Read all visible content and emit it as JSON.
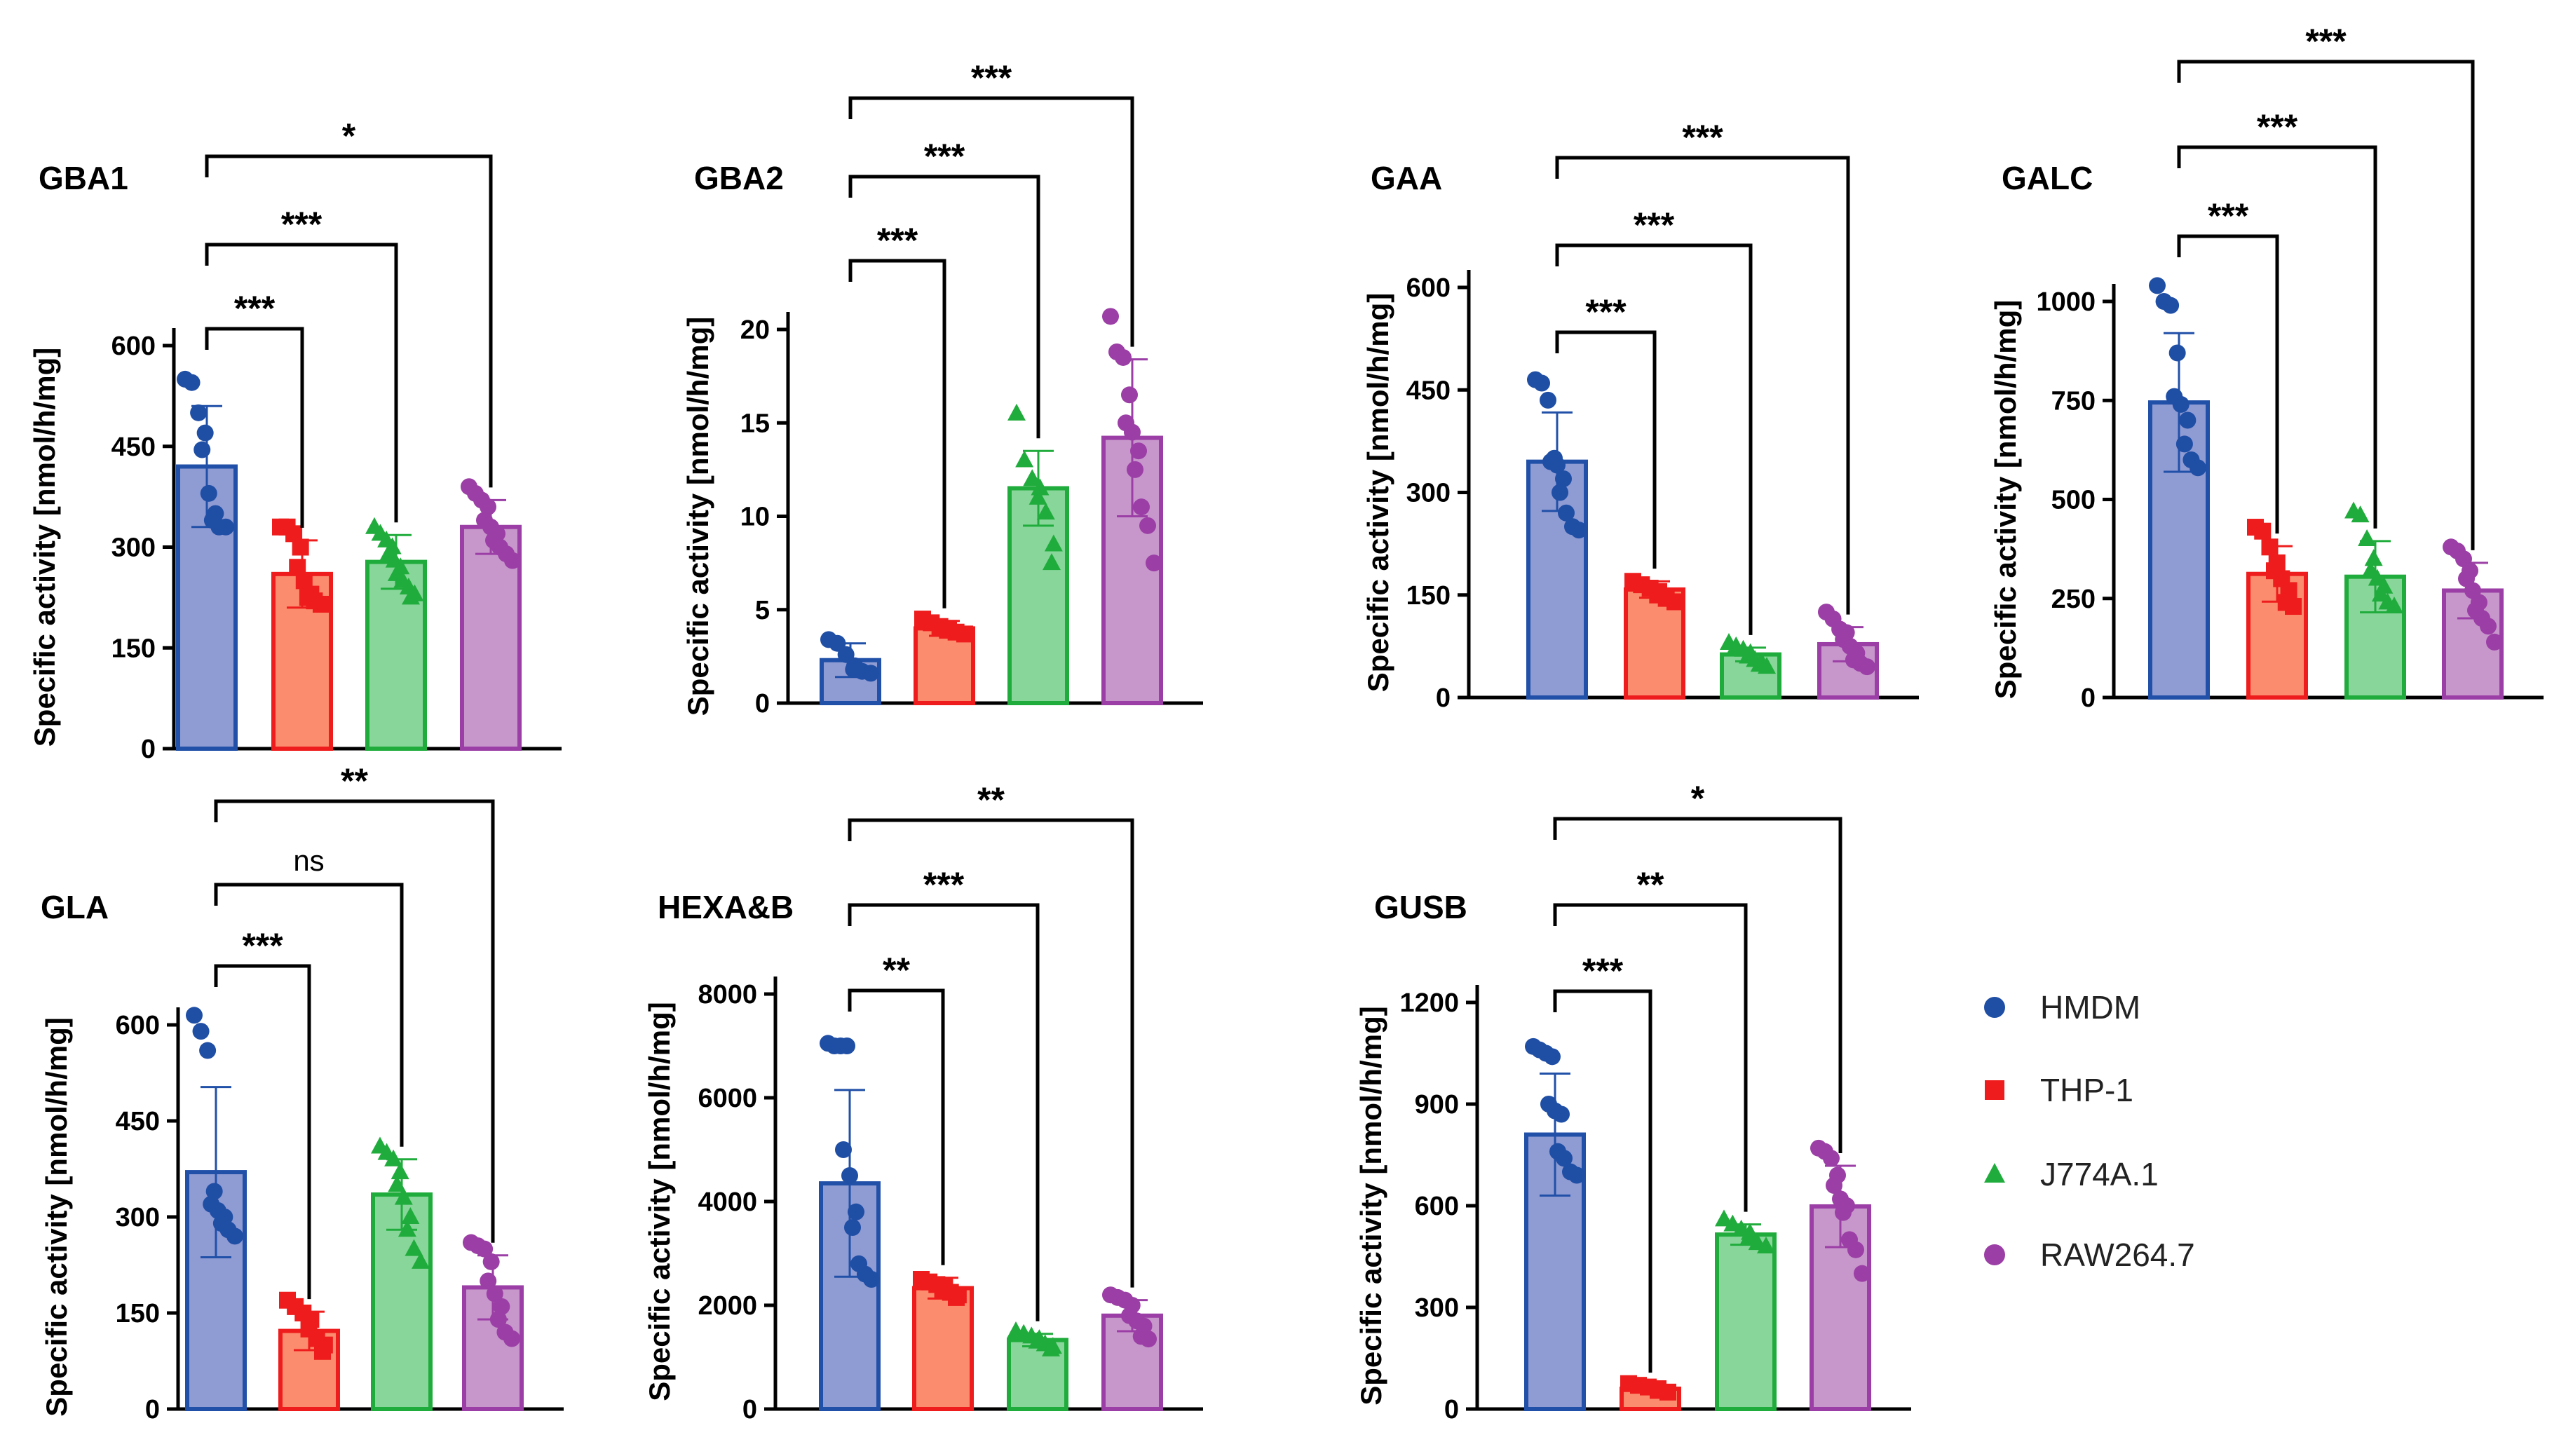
{
  "colors": {
    "HMDM": {
      "fill": "#8f9bd3",
      "stroke": "#2150a8",
      "point": "#1f4ea5"
    },
    "THP-1": {
      "fill": "#fb8c6e",
      "stroke": "#ee1c1c",
      "point": "#ee1c1c"
    },
    "J774A.1": {
      "fill": "#88d69a",
      "stroke": "#20ac3c",
      "point": "#20ac3c"
    },
    "RAW264.7": {
      "fill": "#c797cc",
      "stroke": "#9b3ea5",
      "point": "#9b3ea5"
    }
  },
  "legend": [
    {
      "label": "HMDM",
      "marker": "circle"
    },
    {
      "label": "THP-1",
      "marker": "square"
    },
    {
      "label": "J774A.1",
      "marker": "triangle"
    },
    {
      "label": "RAW264.7",
      "marker": "circle"
    }
  ],
  "chart_data": [
    {
      "type": "bar",
      "title": "GBA1",
      "ylabel": "Specific activity [nmol/h/mg]",
      "categories": [
        "HMDM",
        "THP-1",
        "J774A.1",
        "RAW264.7"
      ],
      "values": [
        420,
        260,
        278,
        330
      ],
      "sd": [
        90,
        50,
        40,
        40
      ],
      "points": [
        [
          550,
          545,
          500,
          470,
          445,
          380,
          350,
          340,
          330,
          330
        ],
        [
          330,
          330,
          320,
          300,
          270,
          250,
          230,
          225,
          220,
          215
        ],
        [
          330,
          320,
          310,
          300,
          290,
          280,
          270,
          260,
          250,
          240,
          230,
          225
        ],
        [
          390,
          380,
          370,
          360,
          340,
          330,
          320,
          310,
          300,
          290,
          280
        ]
      ],
      "ylim": [
        0,
        600
      ],
      "yticks": [
        0,
        150,
        300,
        450,
        600
      ],
      "comparisons": [
        {
          "from": "HMDM",
          "to": "THP-1",
          "label": "***"
        },
        {
          "from": "HMDM",
          "to": "J774A.1",
          "label": "***"
        },
        {
          "from": "HMDM",
          "to": "RAW264.7",
          "label": "*"
        }
      ]
    },
    {
      "type": "bar",
      "title": "GBA2",
      "ylabel": "Specific activity [nmol/h/mg]",
      "categories": [
        "HMDM",
        "THP-1",
        "J774A.1",
        "RAW264.7"
      ],
      "values": [
        2.3,
        4.0,
        11.5,
        14.2
      ],
      "sd": [
        0.9,
        0.4,
        2.0,
        4.2
      ],
      "points": [
        [
          3.4,
          3.2,
          2.6,
          2.0,
          1.8,
          1.7,
          1.6
        ],
        [
          4.5,
          4.3,
          4.1,
          4.0,
          3.9,
          3.8,
          3.7
        ],
        [
          15.5,
          13.0,
          12.0,
          11.5,
          11.0,
          10.2,
          8.5,
          7.5
        ],
        [
          20.7,
          18.8,
          18.5,
          16.5,
          15.0,
          14.5,
          13.5,
          12.5,
          10.5,
          9.5,
          7.5
        ]
      ],
      "ylim": [
        0,
        20
      ],
      "yticks": [
        0,
        5,
        10,
        15,
        20
      ],
      "comparisons": [
        {
          "from": "HMDM",
          "to": "THP-1",
          "label": "***"
        },
        {
          "from": "HMDM",
          "to": "J774A.1",
          "label": "***"
        },
        {
          "from": "HMDM",
          "to": "RAW264.7",
          "label": "***"
        }
      ]
    },
    {
      "type": "bar",
      "title": "GAA",
      "ylabel": "Specific activity [nmol/h/mg]",
      "categories": [
        "HMDM",
        "THP-1",
        "J774A.1",
        "RAW264.7"
      ],
      "values": [
        345,
        158,
        63,
        78
      ],
      "sd": [
        72,
        12,
        10,
        25
      ],
      "points": [
        [
          465,
          460,
          435,
          350,
          345,
          340,
          320,
          300,
          270,
          250,
          245
        ],
        [
          170,
          165,
          160,
          155,
          150,
          145,
          140
        ],
        [
          80,
          75,
          70,
          65,
          60,
          55,
          50,
          48,
          45
        ],
        [
          125,
          115,
          100,
          95,
          85,
          75,
          65,
          55,
          50,
          45
        ]
      ],
      "ylim": [
        0,
        600
      ],
      "yticks": [
        0,
        150,
        300,
        450,
        600
      ],
      "comparisons": [
        {
          "from": "HMDM",
          "to": "THP-1",
          "label": "***"
        },
        {
          "from": "HMDM",
          "to": "J774A.1",
          "label": "***"
        },
        {
          "from": "HMDM",
          "to": "RAW264.7",
          "label": "***"
        }
      ]
    },
    {
      "type": "bar",
      "title": "GALC",
      "ylabel": "Specific activity [nmol/h/mg]",
      "categories": [
        "HMDM",
        "THP-1",
        "J774A.1",
        "RAW264.7"
      ],
      "values": [
        745,
        312,
        305,
        270
      ],
      "sd": [
        175,
        70,
        90,
        70
      ],
      "points": [
        [
          1040,
          1000,
          990,
          870,
          760,
          740,
          700,
          640,
          600,
          580
        ],
        [
          430,
          420,
          380,
          340,
          320,
          300,
          270,
          240,
          230
        ],
        [
          470,
          460,
          400,
          350,
          320,
          300,
          280,
          260,
          240,
          230
        ],
        [
          380,
          370,
          350,
          320,
          300,
          270,
          240,
          220,
          200,
          180,
          140
        ]
      ],
      "ylim": [
        0,
        1000
      ],
      "yticks": [
        0,
        250,
        500,
        750,
        1000
      ],
      "comparisons": [
        {
          "from": "HMDM",
          "to": "THP-1",
          "label": "***"
        },
        {
          "from": "HMDM",
          "to": "J774A.1",
          "label": "***"
        },
        {
          "from": "HMDM",
          "to": "RAW264.7",
          "label": "***"
        }
      ]
    },
    {
      "type": "bar",
      "title": "GLA",
      "ylabel": "Specific activity [nmol/h/mg]",
      "categories": [
        "HMDM",
        "THP-1",
        "J774A.1",
        "RAW264.7"
      ],
      "values": [
        370,
        122,
        335,
        190
      ],
      "sd": [
        133,
        30,
        55,
        50
      ],
      "points": [
        [
          615,
          590,
          560,
          340,
          320,
          310,
          300,
          290,
          280,
          270
        ],
        [
          170,
          160,
          150,
          140,
          125,
          110,
          100,
          90
        ],
        [
          410,
          400,
          390,
          370,
          350,
          330,
          300,
          280,
          250,
          230
        ],
        [
          260,
          255,
          250,
          230,
          200,
          180,
          160,
          140,
          120,
          110
        ]
      ],
      "ylim": [
        0,
        600
      ],
      "yticks": [
        0,
        150,
        300,
        450,
        600
      ],
      "comparisons": [
        {
          "from": "HMDM",
          "to": "THP-1",
          "label": "***"
        },
        {
          "from": "HMDM",
          "to": "J774A.1",
          "label": "ns"
        },
        {
          "from": "HMDM",
          "to": "RAW264.7",
          "label": "**"
        }
      ]
    },
    {
      "type": "bar",
      "title": "HEXA&B",
      "ylabel": "Specific activity [nmol/h/mg]",
      "categories": [
        "HMDM",
        "THP-1",
        "J774A.1",
        "RAW264.7"
      ],
      "values": [
        4350,
        2330,
        1330,
        1800
      ],
      "sd": [
        1800,
        200,
        120,
        300
      ],
      "points": [
        [
          7050,
          7000,
          7000,
          7000,
          5000,
          4500,
          3800,
          3500,
          2800,
          2600,
          2500
        ],
        [
          2500,
          2450,
          2400,
          2350,
          2300,
          2250,
          2200,
          2150
        ],
        [
          1500,
          1450,
          1400,
          1350,
          1300,
          1250,
          1200,
          1150
        ],
        [
          2200,
          2150,
          2100,
          2000,
          1800,
          1700,
          1600,
          1400,
          1350
        ]
      ],
      "ylim": [
        0,
        8000
      ],
      "yticks": [
        0,
        2000,
        4000,
        6000,
        8000
      ],
      "comparisons": [
        {
          "from": "HMDM",
          "to": "THP-1",
          "label": "**"
        },
        {
          "from": "HMDM",
          "to": "J774A.1",
          "label": "***"
        },
        {
          "from": "HMDM",
          "to": "RAW264.7",
          "label": "**"
        }
      ]
    },
    {
      "type": "bar",
      "title": "GUSB",
      "ylabel": "Specific activity [nmol/h/mg]",
      "categories": [
        "HMDM",
        "THP-1",
        "J774A.1",
        "RAW264.7"
      ],
      "values": [
        810,
        60,
        515,
        598
      ],
      "sd": [
        180,
        10,
        30,
        120
      ],
      "points": [
        [
          1070,
          1060,
          1050,
          1040,
          900,
          880,
          870,
          760,
          740,
          700,
          690
        ],
        [
          75,
          70,
          65,
          60,
          55,
          50
        ],
        [
          560,
          545,
          530,
          520,
          505,
          490,
          480
        ],
        [
          770,
          760,
          740,
          690,
          660,
          620,
          600,
          580,
          500,
          470,
          400
        ]
      ],
      "ylim": [
        0,
        1200
      ],
      "yticks": [
        0,
        300,
        600,
        900,
        1200
      ],
      "comparisons": [
        {
          "from": "HMDM",
          "to": "THP-1",
          "label": "***"
        },
        {
          "from": "HMDM",
          "to": "J774A.1",
          "label": "**"
        },
        {
          "from": "HMDM",
          "to": "RAW264.7",
          "label": "*"
        }
      ]
    }
  ]
}
